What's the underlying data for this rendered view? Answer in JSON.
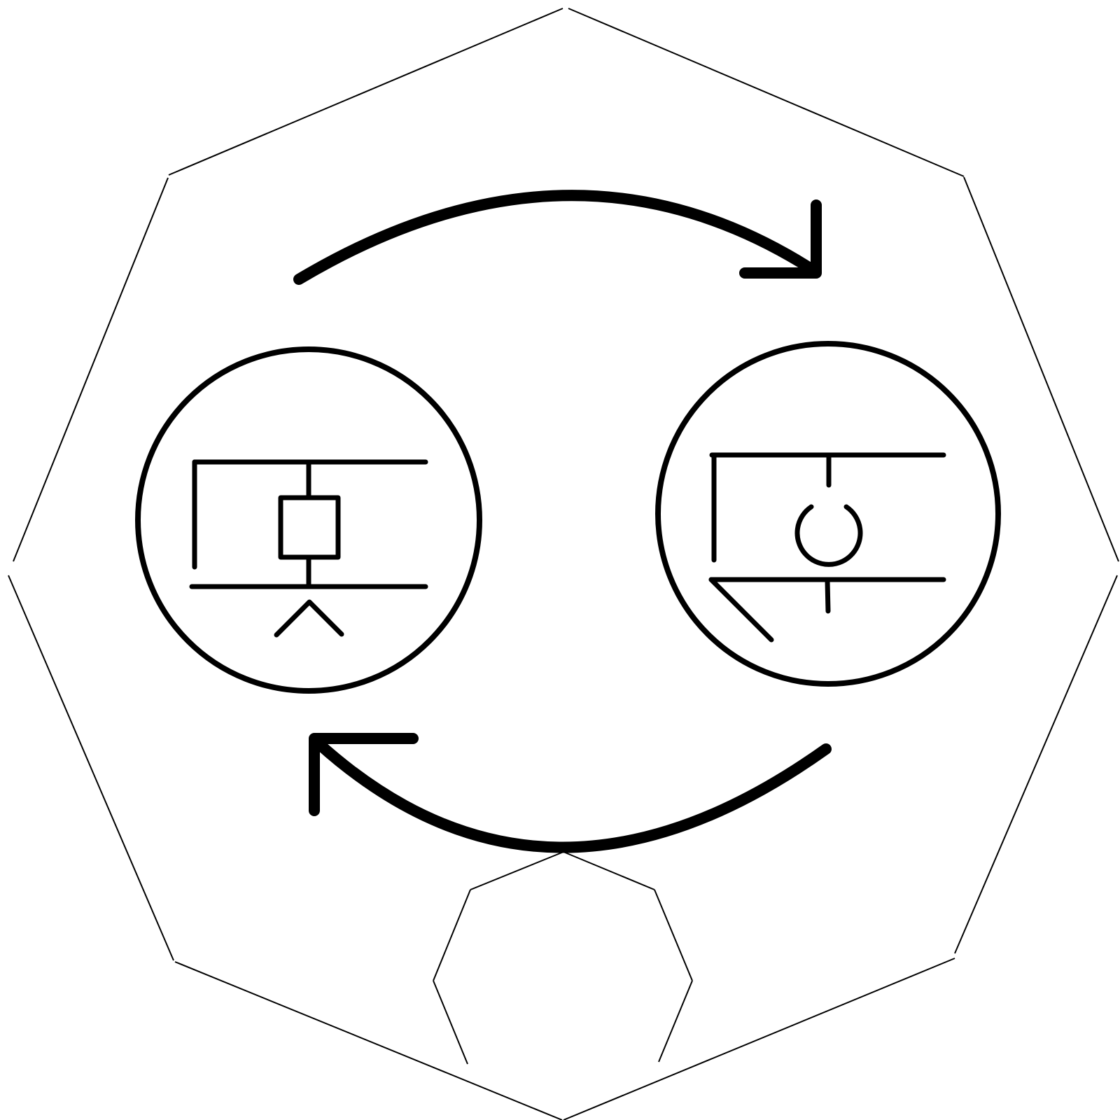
{
  "diagram": {
    "type": "cycle",
    "nodes": [
      {
        "id": "left",
        "icon": "split-switch-symbol-icon"
      },
      {
        "id": "right",
        "icon": "split-switch-open-symbol-icon"
      }
    ],
    "edges": [
      {
        "from": "left",
        "to": "right",
        "style": "curved-arrow"
      },
      {
        "from": "right",
        "to": "left",
        "style": "curved-arrow"
      }
    ]
  },
  "colors": {
    "stroke": "#000000",
    "background": "#ffffff"
  }
}
